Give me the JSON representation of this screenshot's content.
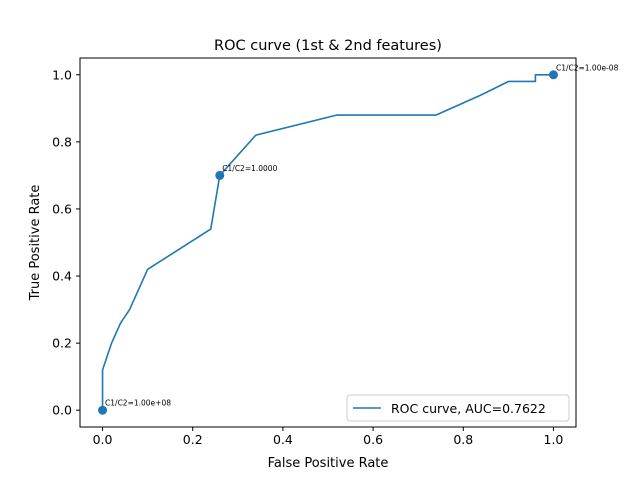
{
  "chart_data": {
    "type": "line",
    "title": "ROC curve (1st & 2nd features)",
    "xlabel": "False Positive Rate",
    "ylabel": "True Positive Rate",
    "xlim": [
      -0.05,
      1.05
    ],
    "ylim": [
      -0.05,
      1.05
    ],
    "xticks": [
      0.0,
      0.2,
      0.4,
      0.6,
      0.8,
      1.0
    ],
    "yticks": [
      0.0,
      0.2,
      0.4,
      0.6,
      0.8,
      1.0
    ],
    "xtick_labels": [
      "0.0",
      "0.2",
      "0.4",
      "0.6",
      "0.8",
      "1.0"
    ],
    "ytick_labels": [
      "0.0",
      "0.2",
      "0.4",
      "0.6",
      "0.8",
      "1.0"
    ],
    "grid": false,
    "legend_position": "lower right",
    "color": "#1f77b4",
    "series": [
      {
        "name": "ROC curve, AUC=0.7622",
        "x": [
          0.0,
          0.0,
          0.02,
          0.04,
          0.06,
          0.1,
          0.24,
          0.26,
          0.34,
          0.52,
          0.74,
          0.84,
          0.9,
          0.96,
          0.96,
          1.0
        ],
        "y": [
          0.0,
          0.12,
          0.2,
          0.26,
          0.3,
          0.42,
          0.54,
          0.7,
          0.82,
          0.88,
          0.88,
          0.94,
          0.98,
          0.98,
          1.0,
          1.0
        ]
      }
    ],
    "annotations": [
      {
        "x": 0.0,
        "y": 0.0,
        "text": "C1/C2=1.00e+08"
      },
      {
        "x": 0.26,
        "y": 0.7,
        "text": "C1/C2=1.0000"
      },
      {
        "x": 1.0,
        "y": 1.0,
        "text": "C1/C2=1.00e-08"
      }
    ]
  }
}
